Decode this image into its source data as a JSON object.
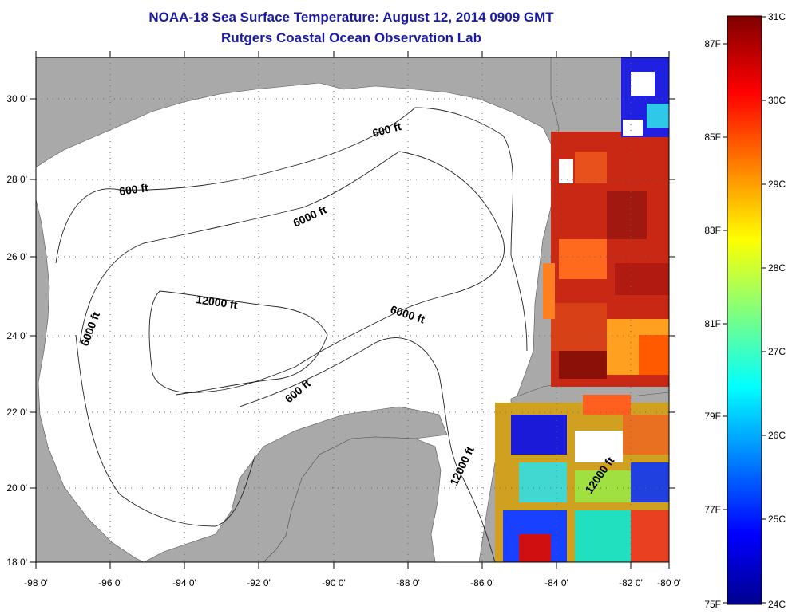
{
  "title": {
    "line1": "NOAA-18 Sea Surface Temperature:  August 12, 2014 0909 GMT",
    "line2": "Rutgers Coastal Ocean Observation Lab"
  },
  "map": {
    "lon_labels": [
      "-98 0'",
      "-96 0'",
      "-94 0'",
      "-92 0'",
      "-90 0'",
      "-88 0'",
      "-86 0'",
      "-84 0'",
      "-82 0'",
      "-80 0'"
    ],
    "lat_labels": [
      "30 0'",
      "28 0'",
      "26 0'",
      "24 0'",
      "22 0'",
      "20 0'",
      "18 0'"
    ],
    "contour_labels": [
      "600 ft",
      "600 ft",
      "6000 ft",
      "6000 ft",
      "12000 ft",
      "6000 ft",
      "600 ft",
      "12000 ft",
      "12000 ft"
    ],
    "land_color": "#a9a9a9",
    "ocean_color": "#ffffff"
  },
  "colorbar": {
    "celsius_labels": [
      "31C",
      "30C",
      "29C",
      "28C",
      "27C",
      "26C",
      "25C",
      "24C"
    ],
    "fahrenheit_labels": [
      "87F",
      "85F",
      "83F",
      "81F",
      "79F",
      "77F",
      "75F"
    ]
  }
}
